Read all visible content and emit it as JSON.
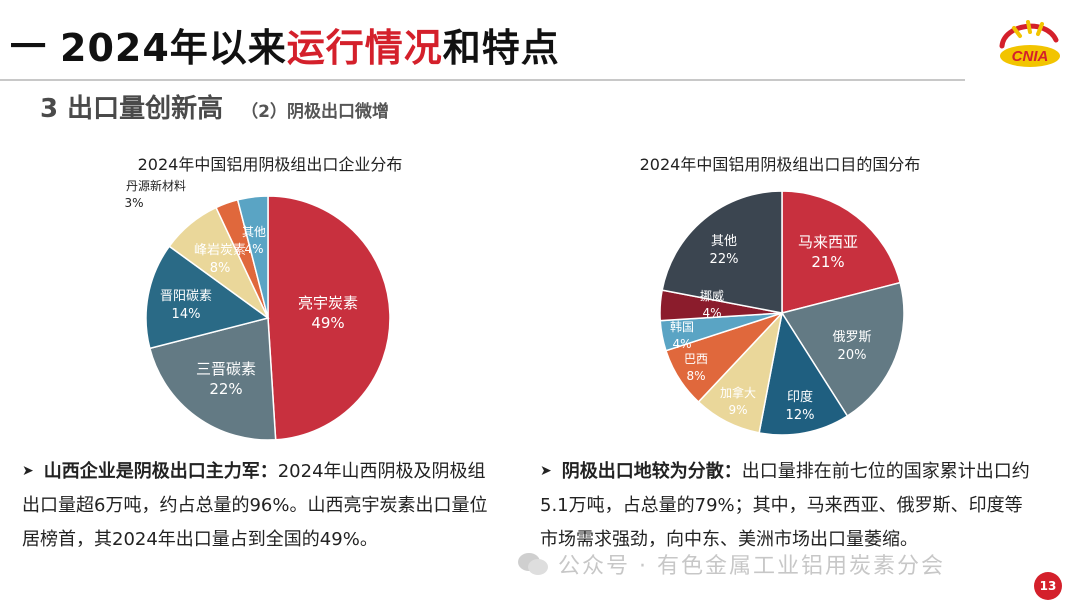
{
  "header": {
    "dash": "一",
    "title_prefix": "2024年以来",
    "title_highlight": "运行情况",
    "title_suffix": "和特点",
    "logo_text": "CNIA"
  },
  "section": {
    "main": "3 出口量创新高",
    "sub": "（2）阴极出口微增"
  },
  "colors": {
    "red": "#c8303e",
    "slate": "#637a84",
    "teal": "#2a6a86",
    "cream": "#ead79a",
    "orange": "#e0683c",
    "lightblue": "#5aa4c4",
    "dark": "#3b4550",
    "darkred": "#8b1c2c",
    "mid_slate": "#5f7680",
    "navy_teal": "#1f5f80"
  },
  "chart_data": [
    {
      "type": "pie",
      "title": "2024年中国铝用阴极组出口企业分布",
      "slices": [
        {
          "label": "亮宇炭素",
          "value": 49,
          "pct": "49%",
          "color": "#c8303e"
        },
        {
          "label": "三晋碳素",
          "value": 22,
          "pct": "22%",
          "color": "#637a84"
        },
        {
          "label": "晋阳碳素",
          "value": 14,
          "pct": "14%",
          "color": "#2a6a86"
        },
        {
          "label": "峰岩炭素",
          "value": 8,
          "pct": "8%",
          "color": "#ead79a"
        },
        {
          "label": "丹源新材料",
          "value": 3,
          "pct": "3%",
          "color": "#e0683c"
        },
        {
          "label": "其他",
          "value": 4,
          "pct": "4%",
          "color": "#5aa4c4"
        }
      ]
    },
    {
      "type": "pie",
      "title": "2024年中国铝用阴极组出口目的国分布",
      "slices": [
        {
          "label": "马来西亚",
          "value": 21,
          "pct": "21%",
          "color": "#c8303e"
        },
        {
          "label": "俄罗斯",
          "value": 20,
          "pct": "20%",
          "color": "#637a84"
        },
        {
          "label": "印度",
          "value": 12,
          "pct": "12%",
          "color": "#1f5f80"
        },
        {
          "label": "加拿大",
          "value": 9,
          "pct": "9%",
          "color": "#ead79a"
        },
        {
          "label": "巴西",
          "value": 8,
          "pct": "8%",
          "color": "#e0683c"
        },
        {
          "label": "韩国",
          "value": 4,
          "pct": "4%",
          "color": "#5aa4c4"
        },
        {
          "label": "挪威",
          "value": 4,
          "pct": "4%",
          "color": "#8b1c2c"
        },
        {
          "label": "其他",
          "value": 22,
          "pct": "22%",
          "color": "#3b4550"
        }
      ]
    }
  ],
  "bullets": [
    {
      "bold": "山西企业是阴极出口主力军：",
      "text": "2024年山西阴极及阴极组出口量超6万吨，约占总量的96%。山西亮宇炭素出口量位居榜首，其2024年出口量占到全国的49%。"
    },
    {
      "bold": "阴极出口地较为分散：",
      "text": "出口量排在前七位的国家累计出口约5.1万吨，占总量的79%；其中，马来西亚、俄罗斯、印度等市场需求强劲，向中东、美洲市场出口量萎缩。"
    }
  ],
  "watermark": "公众号 · 有色金属工业铝用炭素分会",
  "page_number": "13"
}
